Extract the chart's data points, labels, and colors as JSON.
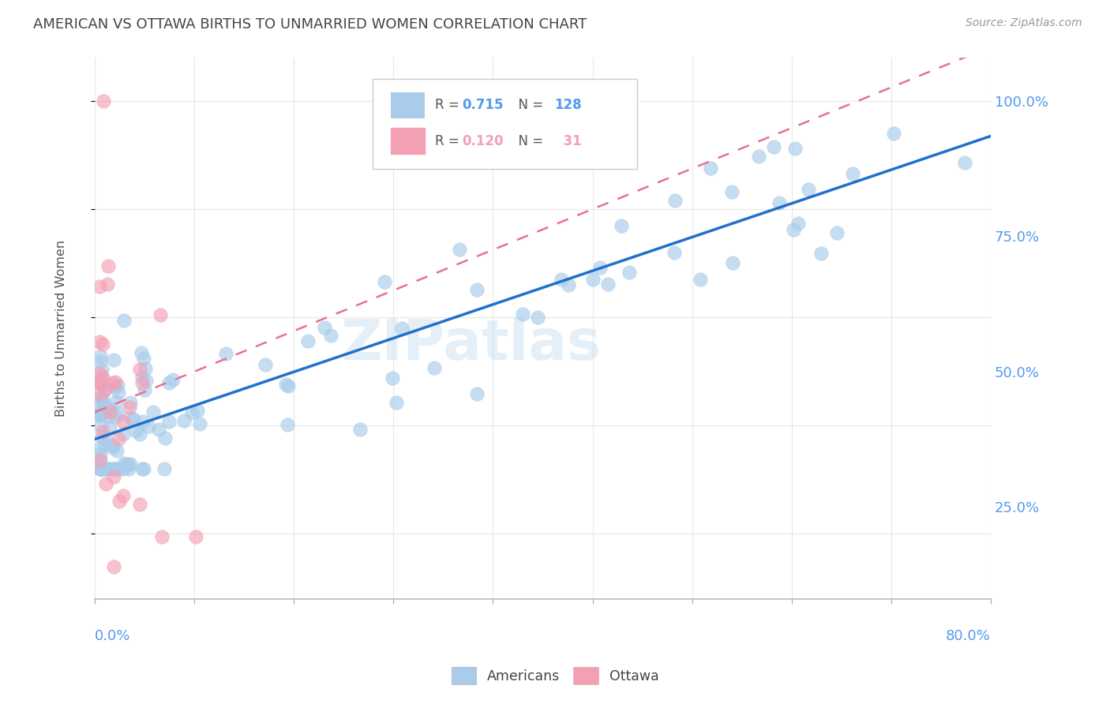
{
  "title": "AMERICAN VS OTTAWA BIRTHS TO UNMARRIED WOMEN CORRELATION CHART",
  "source": "Source: ZipAtlas.com",
  "ylabel": "Births to Unmarried Women",
  "legend_american_R": 0.715,
  "legend_american_N": 128,
  "legend_ottawa_R": 0.12,
  "legend_ottawa_N": 31,
  "watermark": "ZIPatlas",
  "american_color": "#A8CCEA",
  "ottawa_color": "#F4A0B4",
  "trend_american_color": "#2070CC",
  "trend_ottawa_color": "#E87090",
  "background_color": "#FFFFFF",
  "grid_color": "#DDDDDD",
  "axis_label_color": "#5599EE",
  "title_color": "#444444",
  "xmin": 0.0,
  "xmax": 0.8,
  "ymin": 0.08,
  "ymax": 1.08,
  "trend_am_x0": 0.0,
  "trend_am_y0": 0.375,
  "trend_am_x1": 0.8,
  "trend_am_y1": 0.935,
  "trend_ot_x0": 0.0,
  "trend_ot_y0": 0.425,
  "trend_ot_x1": 0.8,
  "trend_ot_y1": 1.1
}
